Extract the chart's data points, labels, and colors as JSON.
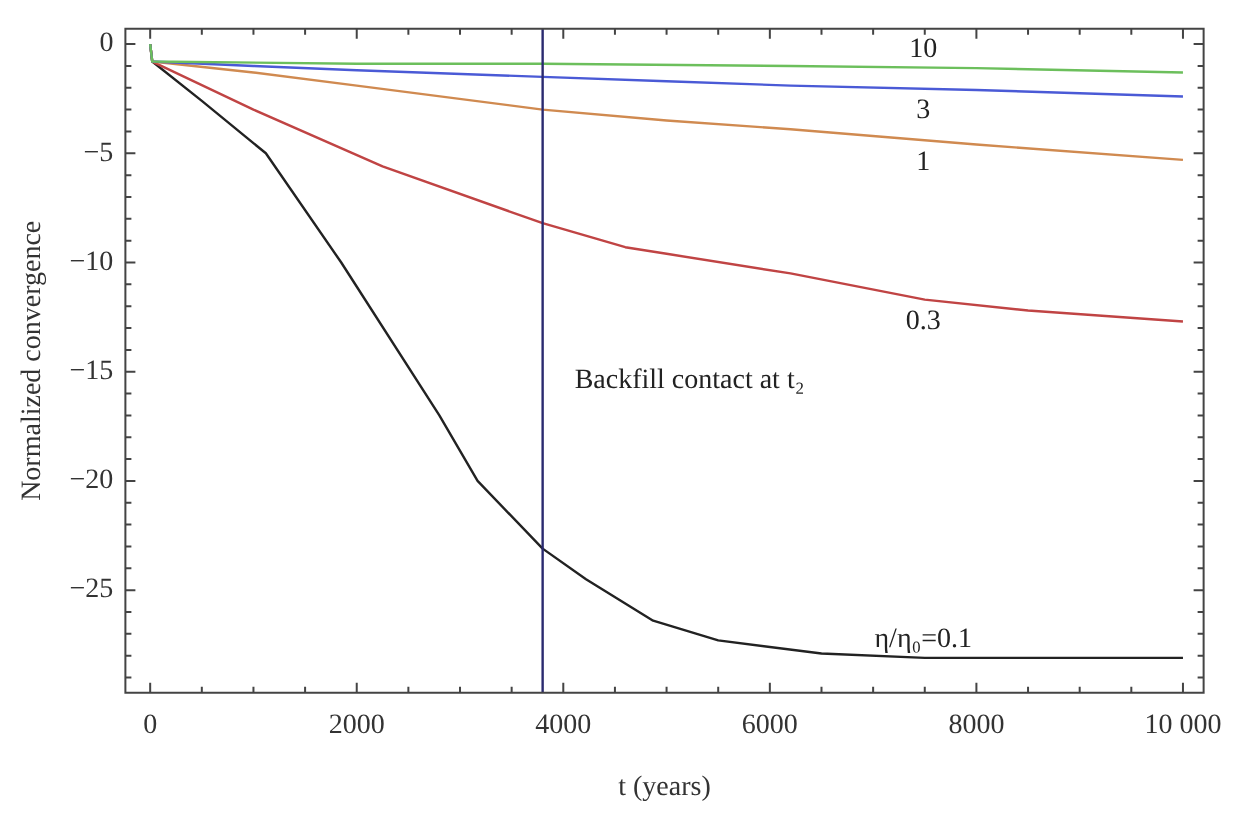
{
  "chart_data": {
    "type": "line",
    "xlabel": "t (years)",
    "ylabel": "Normalized convergence",
    "xlim": [
      -240,
      10200
    ],
    "ylim": [
      -29.7,
      0.7
    ],
    "xticks": [
      0,
      {
        "value": 500,
        "label": null
      },
      {
        "value": 1000,
        "label": null
      },
      {
        "value": 1500,
        "label": null
      },
      2000,
      {
        "value": 2500,
        "label": null
      },
      {
        "value": 3000,
        "label": null
      },
      {
        "value": 3500,
        "label": null
      },
      4000,
      {
        "value": 4500,
        "label": null
      },
      {
        "value": 5000,
        "label": null
      },
      {
        "value": 5500,
        "label": null
      },
      6000,
      {
        "value": 6500,
        "label": null
      },
      {
        "value": 7000,
        "label": null
      },
      {
        "value": 7500,
        "label": null
      },
      8000,
      {
        "value": 8500,
        "label": null
      },
      {
        "value": 9000,
        "label": null
      },
      {
        "value": 9500,
        "label": null
      },
      {
        "value": 10000,
        "label": "10 000"
      }
    ],
    "yticks": [
      {
        "value": -29,
        "label": null
      },
      {
        "value": -28,
        "label": null
      },
      {
        "value": -27,
        "label": null
      },
      {
        "value": -26,
        "label": null
      },
      -25,
      {
        "value": -24,
        "label": null
      },
      {
        "value": -23,
        "label": null
      },
      {
        "value": -22,
        "label": null
      },
      {
        "value": -21,
        "label": null
      },
      -20,
      {
        "value": -19,
        "label": null
      },
      {
        "value": -18,
        "label": null
      },
      {
        "value": -17,
        "label": null
      },
      {
        "value": -16,
        "label": null
      },
      -15,
      {
        "value": -14,
        "label": null
      },
      {
        "value": -13,
        "label": null
      },
      {
        "value": -12,
        "label": null
      },
      {
        "value": -11,
        "label": null
      },
      -10,
      {
        "value": -9,
        "label": null
      },
      {
        "value": -8,
        "label": null
      },
      {
        "value": -7,
        "label": null
      },
      {
        "value": -6,
        "label": null
      },
      -5,
      {
        "value": -4,
        "label": null
      },
      {
        "value": -3,
        "label": null
      },
      {
        "value": -2,
        "label": null
      },
      {
        "value": -1,
        "label": null
      },
      0
    ],
    "grid": false,
    "legend": false,
    "marker": "none",
    "line_style": "solid",
    "series": [
      {
        "name": "10",
        "color": "#6cbf5c",
        "x": [
          0,
          20,
          2000,
          3800,
          6200,
          8000,
          10000
        ],
        "values": [
          0,
          -0.8,
          -0.9,
          -0.9,
          -1.0,
          -1.1,
          -1.3
        ]
      },
      {
        "name": "3",
        "color": "#4a5ad6",
        "x": [
          0,
          20,
          1000,
          2000,
          3800,
          5000,
          6200,
          8000,
          10000
        ],
        "values": [
          0,
          -0.8,
          -1.0,
          -1.2,
          -1.5,
          -1.7,
          -1.9,
          -2.1,
          -2.4
        ]
      },
      {
        "name": "1",
        "color": "#d08a50",
        "x": [
          0,
          20,
          1000,
          2000,
          3800,
          5000,
          6200,
          8000,
          10000
        ],
        "values": [
          0,
          -0.8,
          -1.3,
          -1.9,
          -3.0,
          -3.5,
          -3.9,
          -4.6,
          -5.3
        ]
      },
      {
        "name": "0.3",
        "color": "#c04444",
        "x": [
          0,
          20,
          1000,
          2250,
          3800,
          4600,
          5000,
          6200,
          7500,
          8500,
          10000
        ],
        "values": [
          0,
          -0.8,
          -3.0,
          -5.6,
          -8.2,
          -9.3,
          -9.6,
          -10.5,
          -11.7,
          -12.2,
          -12.7
        ]
      },
      {
        "name": "η/η₀=0.1",
        "color": "#222222",
        "x": [
          0,
          20,
          500,
          1120,
          1850,
          2800,
          3170,
          3800,
          4220,
          4870,
          5500,
          6500,
          7500,
          10000
        ],
        "values": [
          0,
          -0.8,
          -2.6,
          -5,
          -10,
          -17,
          -20,
          -23.1,
          -24.5,
          -26.4,
          -27.3,
          -27.9,
          -28.1,
          -28.1
        ]
      }
    ],
    "ref_lines": [
      {
        "axis": "x",
        "value": 3800,
        "color": "#2a2a70",
        "label": "Backfill contact at t₂"
      }
    ]
  }
}
